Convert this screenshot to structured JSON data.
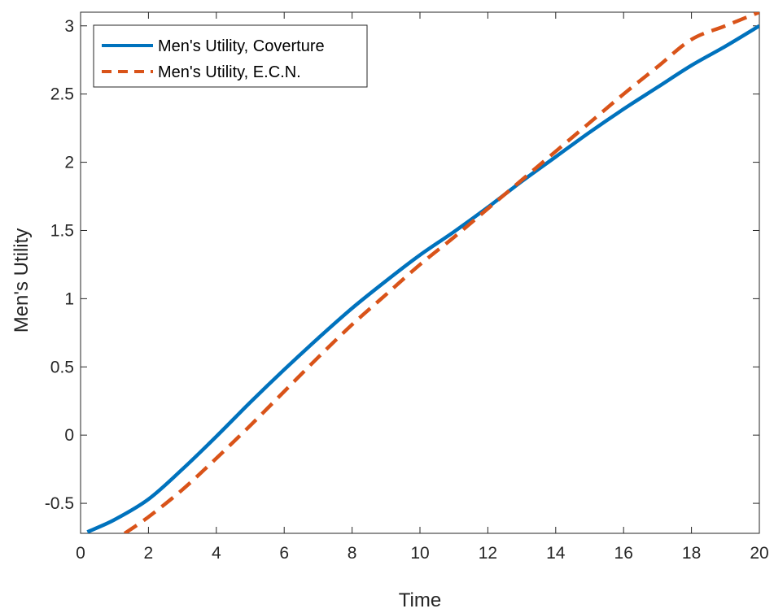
{
  "chart_data": {
    "type": "line",
    "title": "",
    "xlabel": "Time",
    "ylabel": "Men's Utility",
    "xlim": [
      0,
      20
    ],
    "ylim": [
      -0.72,
      3.1
    ],
    "xticks": [
      0,
      2,
      4,
      6,
      8,
      10,
      12,
      14,
      16,
      18,
      20
    ],
    "yticks": [
      -0.5,
      0,
      0.5,
      1,
      1.5,
      2,
      2.5,
      3
    ],
    "xtick_labels": [
      "0",
      "2",
      "4",
      "6",
      "8",
      "10",
      "12",
      "14",
      "16",
      "18",
      "20"
    ],
    "ytick_labels": [
      "-0.5",
      "0",
      "0.5",
      "1",
      "1.5",
      "2",
      "2.5",
      "3"
    ],
    "grid": false,
    "legend_position": "top-left",
    "series": [
      {
        "name": "Men's Utility, Coverture",
        "color": "#0072BD",
        "style": "solid",
        "x": [
          0.2,
          1,
          2,
          3,
          4,
          5,
          6,
          7,
          8,
          9,
          10,
          11,
          12,
          13,
          14,
          15,
          16,
          17,
          18,
          19,
          20
        ],
        "y": [
          -0.71,
          -0.62,
          -0.47,
          -0.25,
          -0.01,
          0.24,
          0.48,
          0.71,
          0.93,
          1.13,
          1.32,
          1.49,
          1.67,
          1.86,
          2.04,
          2.22,
          2.39,
          2.55,
          2.71,
          2.85,
          3.0
        ]
      },
      {
        "name": "Men's Utility, E.C.N.",
        "color": "#D95319",
        "style": "dashed",
        "x": [
          1.3,
          2,
          3,
          4,
          5,
          6,
          7,
          8,
          9,
          10,
          11,
          12,
          13,
          14,
          15,
          16,
          17,
          18,
          19,
          20
        ],
        "y": [
          -0.72,
          -0.6,
          -0.4,
          -0.17,
          0.07,
          0.32,
          0.57,
          0.81,
          1.03,
          1.25,
          1.45,
          1.66,
          1.87,
          2.08,
          2.29,
          2.5,
          2.7,
          2.9,
          3.0,
          3.1
        ]
      }
    ]
  }
}
